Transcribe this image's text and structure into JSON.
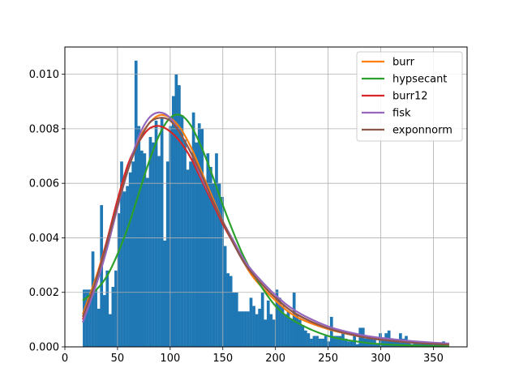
{
  "chart_data": {
    "type": "bar",
    "subtype": "histogram with fitted density curves",
    "title": "",
    "xlabel": "",
    "ylabel": "",
    "xlim": [
      0,
      382
    ],
    "ylim": [
      0,
      0.011
    ],
    "grid": true,
    "legend_position": "top-right",
    "x_ticks": [
      0,
      50,
      100,
      150,
      200,
      250,
      300,
      350
    ],
    "x_tick_labels": [
      "0",
      "50",
      "100",
      "150",
      "200",
      "250",
      "300",
      "350"
    ],
    "y_ticks": [
      0.0,
      0.002,
      0.004,
      0.006,
      0.008,
      0.01
    ],
    "y_tick_labels": [
      "0.000",
      "0.002",
      "0.004",
      "0.006",
      "0.008",
      "0.010"
    ],
    "histogram": {
      "color": "#1f77b4",
      "bin_start": 17,
      "bin_width": 2.73,
      "values": [
        0.0021,
        0.0021,
        0.0021,
        0.0035,
        0.0021,
        0.0014,
        0.0052,
        0.0019,
        0.0028,
        0.0012,
        0.0022,
        0.0028,
        0.0049,
        0.0068,
        0.0057,
        0.0059,
        0.0064,
        0.0068,
        0.0105,
        0.0081,
        0.0072,
        0.0071,
        0.0062,
        0.0077,
        0.0075,
        0.0083,
        0.007,
        0.0084,
        0.0039,
        0.0068,
        0.0081,
        0.0092,
        0.01,
        0.0096,
        0.0085,
        0.0076,
        0.0065,
        0.0068,
        0.0086,
        0.0075,
        0.0082,
        0.008,
        0.0061,
        0.0071,
        0.0066,
        0.006,
        0.0071,
        0.006,
        0.0055,
        0.0037,
        0.0027,
        0.0026,
        0.002,
        0.002,
        0.0013,
        0.0013,
        0.0013,
        0.0013,
        0.0018,
        0.0015,
        0.0012,
        0.0014,
        0.002,
        0.001,
        0.0017,
        0.0012,
        0.001,
        0.0021,
        0.0018,
        0.0015,
        0.0012,
        0.0013,
        0.001,
        0.002,
        0.0012,
        0.001,
        0.0008,
        0.0006,
        0.0005,
        0.0003,
        0.0004,
        0.0004,
        0.0003,
        0.0003,
        0.0004,
        0.0002,
        0.0011,
        0.0004,
        0.0004,
        0.0004,
        0.0005,
        0.0003,
        0.0002,
        0.0002,
        0.0004,
        0.0001,
        0.0007,
        0.0007,
        0.0003,
        0.0004,
        0.0004,
        0.0003,
        0.0001,
        0.0005,
        0.0003,
        0.0005,
        0.0006,
        0.0002,
        0.0002,
        0.0002,
        0.0005,
        0.0003,
        0.0004,
        0.0002,
        0.0001,
        0.0002,
        0.0002,
        0.0002,
        0.0002,
        0.0001,
        0.0001,
        0.0001,
        0.0001,
        0.0001,
        0.0001,
        0.0002
      ]
    },
    "series": [
      {
        "name": "burr",
        "color": "#ff7f0e",
        "x": [
          17,
          30,
          40,
          50,
          60,
          70,
          80,
          90,
          100,
          110,
          120,
          130,
          140,
          150,
          160,
          170,
          180,
          200,
          220,
          250,
          280,
          300,
          330,
          365
        ],
        "y": [
          0.0012,
          0.0026,
          0.0039,
          0.0053,
          0.0066,
          0.0076,
          0.0082,
          0.0085,
          0.0084,
          0.008,
          0.0073,
          0.0064,
          0.0055,
          0.0046,
          0.0038,
          0.0031,
          0.0025,
          0.0017,
          0.0011,
          0.00065,
          0.00038,
          0.00028,
          0.00018,
          0.0001
        ]
      },
      {
        "name": "hypsecant",
        "color": "#2ca02c",
        "x": [
          17,
          30,
          40,
          50,
          60,
          70,
          80,
          90,
          100,
          110,
          120,
          130,
          140,
          150,
          160,
          170,
          180,
          200,
          220,
          250,
          280,
          300,
          330,
          365
        ],
        "y": [
          0.0017,
          0.0021,
          0.0026,
          0.0034,
          0.0044,
          0.0056,
          0.0068,
          0.0078,
          0.0084,
          0.0085,
          0.0081,
          0.0073,
          0.0063,
          0.0052,
          0.0042,
          0.0033,
          0.0026,
          0.0015,
          0.0009,
          0.0004,
          0.00018,
          0.0001,
          5e-05,
          2e-05
        ]
      },
      {
        "name": "burr12",
        "color": "#d62728",
        "x": [
          17,
          30,
          40,
          50,
          60,
          70,
          80,
          90,
          100,
          110,
          120,
          130,
          140,
          150,
          160,
          170,
          180,
          200,
          220,
          250,
          280,
          300,
          330,
          365
        ],
        "y": [
          0.001,
          0.0025,
          0.0039,
          0.0054,
          0.0067,
          0.0075,
          0.008,
          0.0081,
          0.0079,
          0.0075,
          0.0069,
          0.0061,
          0.0053,
          0.0045,
          0.0038,
          0.0031,
          0.0026,
          0.0018,
          0.0012,
          0.00068,
          0.0004,
          0.00029,
          0.00019,
          0.00011
        ]
      },
      {
        "name": "fisk",
        "color": "#9467bd",
        "x": [
          17,
          30,
          40,
          50,
          60,
          70,
          80,
          90,
          100,
          110,
          120,
          130,
          140,
          150,
          160,
          170,
          180,
          200,
          220,
          250,
          280,
          300,
          330,
          365
        ],
        "y": [
          0.0009,
          0.0023,
          0.0036,
          0.0051,
          0.0065,
          0.0077,
          0.0084,
          0.0086,
          0.0084,
          0.0078,
          0.0071,
          0.0062,
          0.0054,
          0.0046,
          0.0039,
          0.0032,
          0.0027,
          0.0019,
          0.0013,
          0.00075,
          0.00045,
          0.00033,
          0.00021,
          0.00012
        ]
      },
      {
        "name": "exponnorm",
        "color": "#8c564b",
        "x": [
          17,
          30,
          40,
          50,
          60,
          70,
          80,
          90,
          100,
          110,
          120,
          130,
          140,
          150,
          160,
          170,
          180,
          200,
          220,
          250,
          280,
          300,
          330,
          365
        ],
        "y": [
          0.0011,
          0.0025,
          0.0038,
          0.0052,
          0.0065,
          0.0075,
          0.0082,
          0.0084,
          0.0083,
          0.0078,
          0.0071,
          0.0063,
          0.0054,
          0.0046,
          0.0038,
          0.0031,
          0.0026,
          0.0018,
          0.0012,
          0.00068,
          0.00038,
          0.00026,
          0.00015,
          8e-05
        ]
      }
    ]
  }
}
